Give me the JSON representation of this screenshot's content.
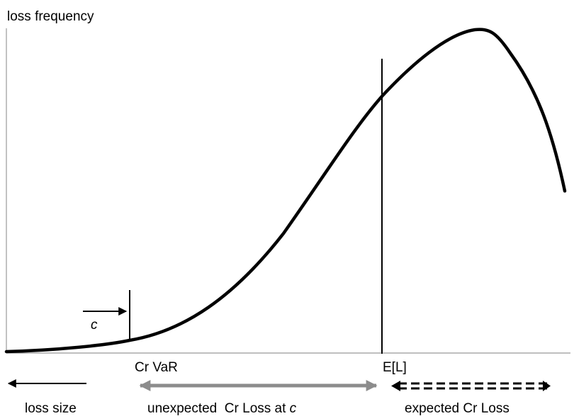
{
  "labels": {
    "y_axis": "loss frequency",
    "c_marker": "c",
    "cr_var": "Cr VaR",
    "expected_loss": "E[L]",
    "loss_size": "loss size",
    "unexpected_prefix": "unexpected  Cr Loss at ",
    "unexpected_c": "c",
    "expected_cr_loss": "expected Cr Loss"
  },
  "colors": {
    "curve": "#000000",
    "axes": "#999999",
    "unexpected_arrow": "#8c8c8c"
  }
}
